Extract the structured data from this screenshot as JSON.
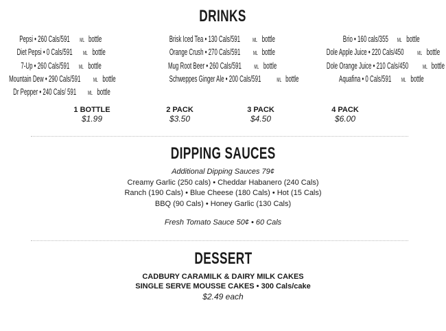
{
  "drinks": {
    "title": "DRINKS",
    "columns": [
      [
        {
          "name": "Pepsi • 260 Cals/591",
          "unit": "ML",
          "suffix": "bottle"
        },
        {
          "name": "Diet Pepsi • 0 Cals/591",
          "unit": "ML",
          "suffix": "bottle"
        },
        {
          "name": "7-Up • 260 Cals/591",
          "unit": "ML",
          "suffix": "bottle"
        },
        {
          "name": "Mountain Dew • 290 Cals/591",
          "unit": "ML",
          "suffix": "bottle"
        },
        {
          "name": "Dr Pepper • 240 Cals/ 591",
          "unit": "ML",
          "suffix": "bottle"
        }
      ],
      [
        {
          "name": "Brisk Iced Tea • 130 Cals/591",
          "unit": "ML",
          "suffix": "bottle"
        },
        {
          "name": "Orange Crush • 270 Cals/591",
          "unit": "ML",
          "suffix": "bottle"
        },
        {
          "name": "Mug Root Beer • 260 Cals/591",
          "unit": "ML",
          "suffix": "bottle"
        },
        {
          "name": "Schweppes Ginger Ale • 200 Cals/591",
          "unit": "ML",
          "suffix": "bottle"
        }
      ],
      [
        {
          "name": "Brio • 160 cals/355",
          "unit": "ML",
          "suffix": "bottle"
        },
        {
          "name": "Dole Apple Juice • 220 Cals/450",
          "unit": "ML",
          "suffix": "bottle"
        },
        {
          "name": "Dole Orange Juice • 210 Cals/450",
          "unit": "ML",
          "suffix": "bottle"
        },
        {
          "name": "Aquafina • 0 Cals/591",
          "unit": "ML",
          "suffix": "bottle"
        }
      ]
    ],
    "prices": [
      {
        "label": "1 BOTTLE",
        "value": "$1.99"
      },
      {
        "label": "2 PACK",
        "value": "$3.50"
      },
      {
        "label": "3 PACK",
        "value": "$4.50"
      },
      {
        "label": "4 PACK",
        "value": "$6.00"
      }
    ]
  },
  "sauces": {
    "title": "DIPPING SAUCES",
    "note": "Additional Dipping Sauces 79¢",
    "lines": [
      "Creamy Garlic (250 cals) • Cheddar Habanero (240 Cals)",
      "Ranch (190 Cals) • Blue Cheese (180 Cals) • Hot (15 Cals)",
      "BBQ (90 Cals) • Honey Garlic (130 Cals)"
    ],
    "fresh": "Fresh Tomato Sauce 50¢ • 60 Cals"
  },
  "dessert": {
    "title": "DESSERT",
    "lines": [
      "CADBURY CARAMILK & DAIRY MILK CAKES",
      "SINGLE SERVE MOUSSE CAKES • 300 Cals/cake"
    ],
    "price": "$2.49 each"
  }
}
